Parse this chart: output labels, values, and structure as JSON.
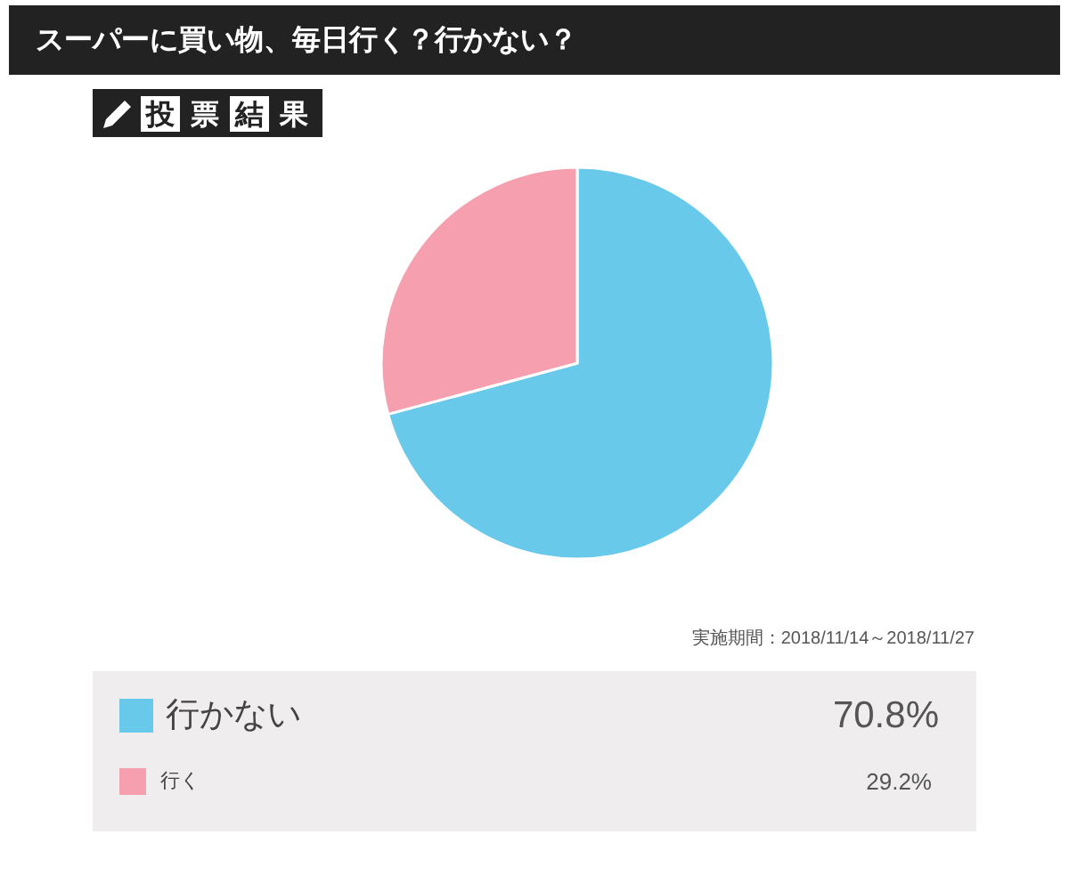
{
  "chart_data": {
    "type": "pie",
    "title": "スーパーに買い物、毎日行く？行かない？",
    "subtitle": "投票結果",
    "categories": [
      "行かない",
      "行く"
    ],
    "values": [
      70.8,
      29.2
    ],
    "colors": [
      "#68c9ea",
      "#f6a0af"
    ],
    "value_labels": [
      "70.8%",
      "29.2%"
    ],
    "legend": "bottom",
    "annotations": [
      "実施期間：2018/11/14～2018/11/27"
    ]
  }
}
